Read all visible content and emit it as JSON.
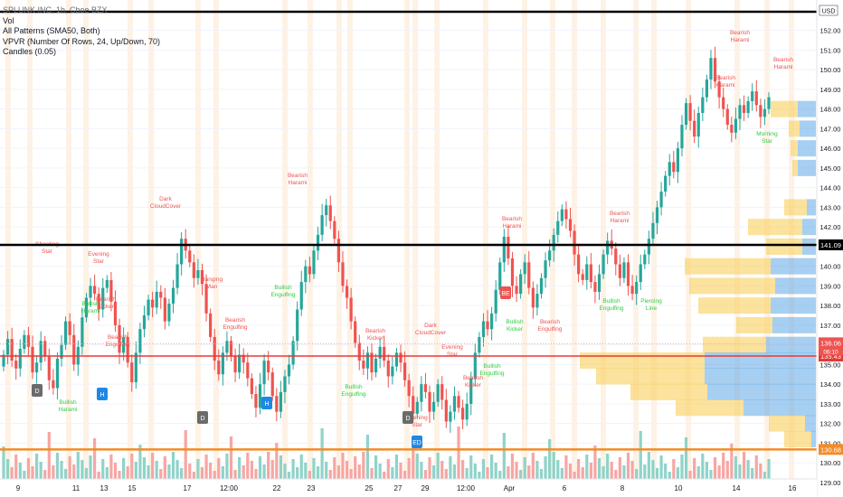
{
  "legend": {
    "symbol": "SPLUNK INC, 1h, Cboe BZX",
    "lines": [
      "Vol",
      "All Patterns (SMA50, Both)",
      "VPVR (Number Of Rows, 24, Up/Down, 70)",
      "Candles (0.05)"
    ]
  },
  "colors": {
    "up": "#26a69a",
    "down": "#ef5350",
    "vol_up": "#8fd3c9",
    "vol_down": "#f7a6a3",
    "vpvr_up": "#5ea8e6",
    "vpvr_down": "#f9cf5c",
    "line_black": "#000000",
    "line_red": "#e53935",
    "line_orange": "#f28c28",
    "session_bg": "#fde7cf"
  },
  "y_axis": {
    "ticks": [
      "152.00",
      "151.00",
      "150.00",
      "149.00",
      "148.00",
      "147.00",
      "146.00",
      "145.00",
      "144.00",
      "143.00",
      "142.00",
      "141.00",
      "140.00",
      "139.00",
      "138.00",
      "137.00",
      "136.00",
      "135.00",
      "134.00",
      "133.00",
      "132.00",
      "131.00",
      "130.00",
      "129.00"
    ],
    "currency": "USD"
  },
  "x_axis": {
    "labels": [
      "9",
      "11",
      "13",
      "15",
      "17",
      "12:00",
      "22",
      "23",
      "25",
      "27",
      "29",
      "12:00",
      "Apr",
      "6",
      "8",
      "10",
      "14",
      "16"
    ]
  },
  "price_levels": [
    {
      "name": "black-upper",
      "price": 152.95,
      "label": "",
      "color": "#000000"
    },
    {
      "name": "black-mid",
      "price": 141.09,
      "label": "141.09",
      "color": "#000000"
    },
    {
      "name": "red-line",
      "price": 135.43,
      "label": "135.43",
      "color": "#e53935"
    },
    {
      "name": "orange-line",
      "price": 130.68,
      "label": "130.68",
      "color": "#f28c28"
    }
  ],
  "last_price": {
    "value": "136.06",
    "countdown": "06:10"
  },
  "pattern_labels": [
    {
      "text": "Shooting Star",
      "kind": "bearish"
    },
    {
      "text": "Evening Star",
      "kind": "bearish"
    },
    {
      "text": "Bullish Harami",
      "kind": "bullish"
    },
    {
      "text": "Bearish Kicker",
      "kind": "bearish"
    },
    {
      "text": "Bearish Engulfing",
      "kind": "bearish"
    },
    {
      "text": "Bearish Harami",
      "kind": "bearish"
    },
    {
      "text": "Dark CloudCover",
      "kind": "bearish"
    },
    {
      "text": "Hanging Man",
      "kind": "bearish"
    },
    {
      "text": "Bullish Engulfing",
      "kind": "bullish"
    },
    {
      "text": "Piercing Line",
      "kind": "bullish"
    },
    {
      "text": "Bullish Kicker",
      "kind": "bullish"
    },
    {
      "text": "Morning Star",
      "kind": "bullish"
    }
  ],
  "markers": [
    "H",
    "D",
    "ED",
    "BE"
  ]
}
